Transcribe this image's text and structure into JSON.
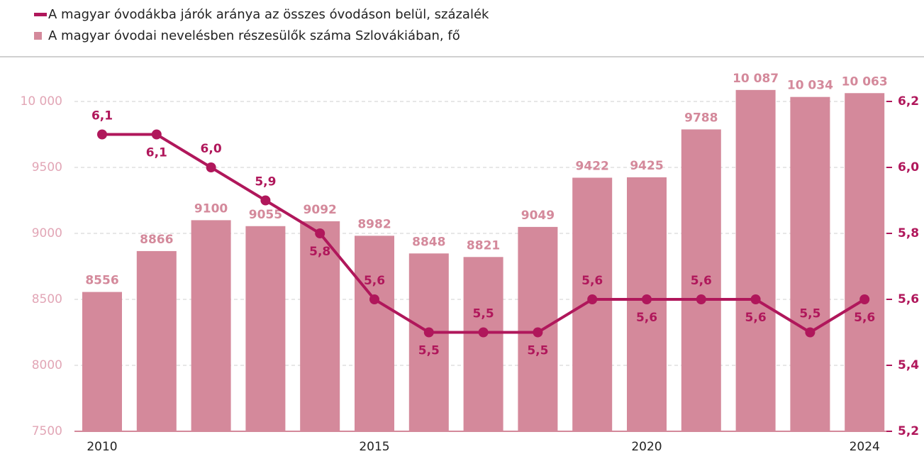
{
  "chart_data": {
    "type": "bar",
    "categories": [
      "2010",
      null,
      null,
      null,
      null,
      "2015",
      null,
      null,
      null,
      null,
      "2020",
      null,
      null,
      null,
      "2024"
    ],
    "series": [
      {
        "name": "A magyar óvodákba járók aránya az összes óvodáson belül, százalék",
        "type": "line",
        "axis": "y2",
        "color": "#b0175b",
        "values": [
          6.1,
          6.1,
          6.0,
          5.9,
          5.8,
          5.6,
          5.5,
          5.5,
          5.5,
          5.6,
          5.6,
          5.6,
          5.6,
          5.5,
          5.6
        ],
        "value_labels": [
          "6,1",
          "6,1",
          "6,0",
          "5,9",
          "5,8",
          "5,6",
          "5,5",
          "5,5",
          "5,5",
          "5,6",
          "5,6",
          "5,6",
          "5,6",
          "5,5",
          "5,6"
        ]
      },
      {
        "name": "A magyar óvodai nevelésben részesülők száma Szlovákiában, fő",
        "type": "bar",
        "axis": "y",
        "color": "#d4899b",
        "values": [
          8556,
          8866,
          9100,
          9055,
          9092,
          8982,
          8848,
          8821,
          9049,
          9422,
          9425,
          9788,
          10087,
          10034,
          10063
        ],
        "value_labels": [
          "8556",
          "8866",
          "9100",
          "9055",
          "9092",
          "8982",
          "8848",
          "8821",
          "9049",
          "9422",
          "9425",
          "9788",
          "10 087",
          "10 034",
          "10 063"
        ]
      }
    ],
    "ylim": [
      7500,
      10000
    ],
    "yticks": [
      7500,
      8000,
      8500,
      9000,
      9500,
      {
        "value": 10000,
        "label": "10 000"
      }
    ],
    "y2lim": [
      5.2,
      6.2
    ],
    "y2ticks": [
      {
        "value": 5.2,
        "label": "5,2"
      },
      {
        "value": 5.4,
        "label": "5,4"
      },
      {
        "value": 5.6,
        "label": "5,6"
      },
      {
        "value": 5.8,
        "label": "5,8"
      },
      {
        "value": 6.0,
        "label": "6,0"
      },
      {
        "value": 6.2,
        "label": "6,2"
      }
    ],
    "grid": true
  }
}
